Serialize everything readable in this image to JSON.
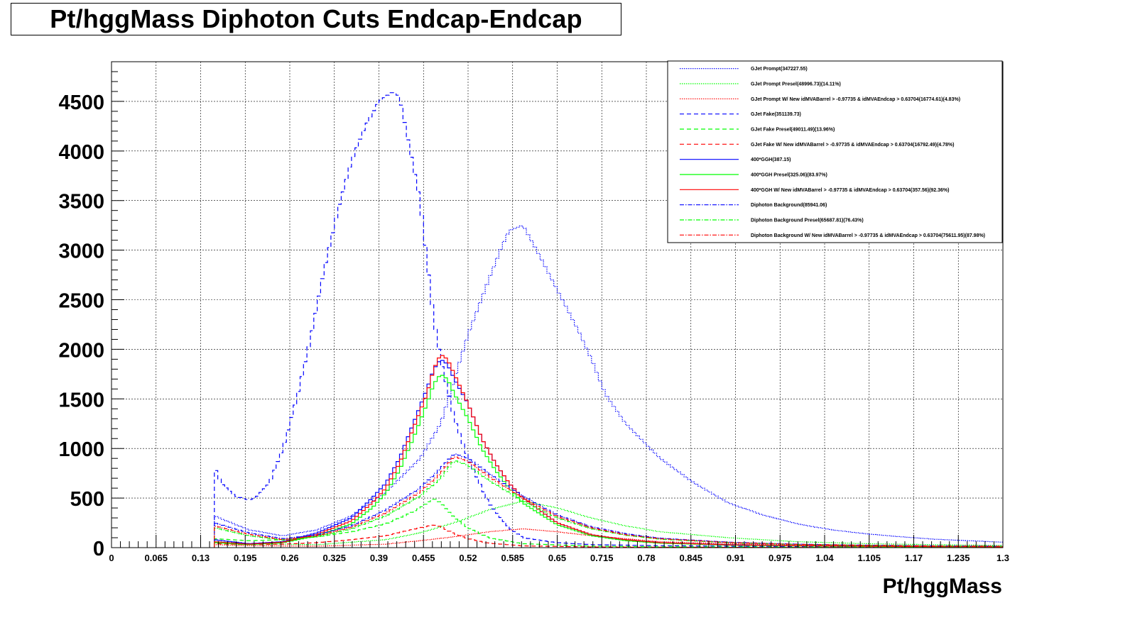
{
  "chart_data": {
    "type": "line",
    "title": "Pt/hggMass Diphoton Cuts Endcap-Endcap",
    "xlabel": "Pt/hggMass",
    "ylabel": "",
    "xlim": [
      0,
      1.3
    ],
    "ylim": [
      0,
      4900
    ],
    "grid": true,
    "legend_position": "top-right",
    "x_ticks": [
      "0",
      "0.065",
      "0.13",
      "0.195",
      "0.26",
      "0.325",
      "0.39",
      "0.455",
      "0.52",
      "0.585",
      "0.65",
      "0.715",
      "0.78",
      "0.845",
      "0.91",
      "0.975",
      "1.04",
      "1.105",
      "1.17",
      "1.235",
      "1.3"
    ],
    "y_ticks": [
      "0",
      "500",
      "1000",
      "1500",
      "2000",
      "2500",
      "3000",
      "3500",
      "4000",
      "4500"
    ],
    "series": [
      {
        "name": "GJet Prompt(347227.55)",
        "color": "#0000ff",
        "dash": "1.5,1.5",
        "points": [
          [
            0.15,
            320
          ],
          [
            0.2,
            180
          ],
          [
            0.25,
            120
          ],
          [
            0.3,
            180
          ],
          [
            0.35,
            320
          ],
          [
            0.4,
            560
          ],
          [
            0.45,
            900
          ],
          [
            0.48,
            1250
          ],
          [
            0.5,
            1700
          ],
          [
            0.52,
            2150
          ],
          [
            0.55,
            2700
          ],
          [
            0.57,
            3050
          ],
          [
            0.58,
            3200
          ],
          [
            0.6,
            3250
          ],
          [
            0.62,
            3000
          ],
          [
            0.65,
            2600
          ],
          [
            0.68,
            2200
          ],
          [
            0.7,
            1900
          ],
          [
            0.72,
            1550
          ],
          [
            0.75,
            1250
          ],
          [
            0.8,
            900
          ],
          [
            0.85,
            650
          ],
          [
            0.9,
            450
          ],
          [
            0.95,
            330
          ],
          [
            1.0,
            240
          ],
          [
            1.05,
            180
          ],
          [
            1.1,
            140
          ],
          [
            1.15,
            110
          ],
          [
            1.2,
            85
          ],
          [
            1.25,
            70
          ],
          [
            1.3,
            55
          ]
        ]
      },
      {
        "name": "GJet Prompt Presel(48996.73)(14.11%)",
        "color": "#00ff00",
        "dash": "1.5,1.5",
        "points": [
          [
            0.15,
            60
          ],
          [
            0.2,
            40
          ],
          [
            0.3,
            30
          ],
          [
            0.4,
            80
          ],
          [
            0.45,
            150
          ],
          [
            0.5,
            250
          ],
          [
            0.55,
            380
          ],
          [
            0.6,
            470
          ],
          [
            0.65,
            400
          ],
          [
            0.7,
            300
          ],
          [
            0.75,
            220
          ],
          [
            0.8,
            160
          ],
          [
            0.9,
            100
          ],
          [
            1.0,
            60
          ],
          [
            1.1,
            40
          ],
          [
            1.2,
            30
          ],
          [
            1.3,
            22
          ]
        ]
      },
      {
        "name": "GJet Prompt W/ New idMVABarrel > -0.97735 & idMVAEndcap > 0.63704(16774.61)(4.83%)",
        "color": "#ff0000",
        "dash": "1.5,1.5",
        "points": [
          [
            0.15,
            30
          ],
          [
            0.2,
            20
          ],
          [
            0.3,
            15
          ],
          [
            0.4,
            35
          ],
          [
            0.45,
            70
          ],
          [
            0.5,
            110
          ],
          [
            0.55,
            160
          ],
          [
            0.6,
            190
          ],
          [
            0.65,
            160
          ],
          [
            0.7,
            120
          ],
          [
            0.75,
            90
          ],
          [
            0.8,
            60
          ],
          [
            0.9,
            40
          ],
          [
            1.0,
            25
          ],
          [
            1.1,
            18
          ],
          [
            1.2,
            12
          ],
          [
            1.3,
            10
          ]
        ]
      },
      {
        "name": "GJet Fake(351139.73)",
        "color": "#0000ff",
        "dash": "6,4",
        "points": [
          [
            0.15,
            820
          ],
          [
            0.16,
            650
          ],
          [
            0.18,
            520
          ],
          [
            0.2,
            480
          ],
          [
            0.21,
            500
          ],
          [
            0.23,
            650
          ],
          [
            0.25,
            1000
          ],
          [
            0.27,
            1500
          ],
          [
            0.29,
            2100
          ],
          [
            0.31,
            2800
          ],
          [
            0.33,
            3400
          ],
          [
            0.35,
            3900
          ],
          [
            0.37,
            4250
          ],
          [
            0.39,
            4500
          ],
          [
            0.41,
            4600
          ],
          [
            0.42,
            4550
          ],
          [
            0.43,
            4200
          ],
          [
            0.45,
            3500
          ],
          [
            0.46,
            2900
          ],
          [
            0.47,
            2300
          ],
          [
            0.48,
            1900
          ],
          [
            0.5,
            1300
          ],
          [
            0.52,
            900
          ],
          [
            0.55,
            450
          ],
          [
            0.58,
            200
          ],
          [
            0.6,
            100
          ],
          [
            0.65,
            50
          ],
          [
            0.7,
            30
          ],
          [
            0.8,
            20
          ],
          [
            0.9,
            15
          ],
          [
            1.0,
            10
          ],
          [
            1.1,
            8
          ],
          [
            1.2,
            6
          ],
          [
            1.3,
            5
          ]
        ]
      },
      {
        "name": "GJet Fake Presel(49011.49)(13.96%)",
        "color": "#00ff00",
        "dash": "6,4",
        "points": [
          [
            0.15,
            90
          ],
          [
            0.2,
            70
          ],
          [
            0.25,
            80
          ],
          [
            0.3,
            110
          ],
          [
            0.35,
            160
          ],
          [
            0.4,
            240
          ],
          [
            0.43,
            330
          ],
          [
            0.45,
            400
          ],
          [
            0.47,
            500
          ],
          [
            0.48,
            450
          ],
          [
            0.5,
            300
          ],
          [
            0.52,
            200
          ],
          [
            0.55,
            100
          ],
          [
            0.6,
            40
          ],
          [
            0.7,
            15
          ],
          [
            0.8,
            8
          ],
          [
            1.0,
            5
          ],
          [
            1.3,
            3
          ]
        ]
      },
      {
        "name": "GJet Fake W/ New idMVABarrel > -0.97735 & idMVAEndcap > 0.63704(16792.49)(4.78%)",
        "color": "#ff0000",
        "dash": "6,4",
        "points": [
          [
            0.15,
            40
          ],
          [
            0.2,
            30
          ],
          [
            0.25,
            35
          ],
          [
            0.3,
            50
          ],
          [
            0.35,
            80
          ],
          [
            0.4,
            120
          ],
          [
            0.43,
            170
          ],
          [
            0.45,
            200
          ],
          [
            0.47,
            230
          ],
          [
            0.48,
            210
          ],
          [
            0.5,
            140
          ],
          [
            0.52,
            90
          ],
          [
            0.55,
            45
          ],
          [
            0.6,
            18
          ],
          [
            0.7,
            7
          ],
          [
            0.8,
            4
          ],
          [
            1.0,
            2
          ],
          [
            1.3,
            1
          ]
        ]
      },
      {
        "name": "400*GGH(387.15)",
        "color": "#0000ff",
        "dash": "",
        "points": [
          [
            0.15,
            80
          ],
          [
            0.2,
            40
          ],
          [
            0.25,
            60
          ],
          [
            0.3,
            150
          ],
          [
            0.35,
            300
          ],
          [
            0.38,
            500
          ],
          [
            0.4,
            650
          ],
          [
            0.42,
            900
          ],
          [
            0.44,
            1250
          ],
          [
            0.46,
            1600
          ],
          [
            0.47,
            1800
          ],
          [
            0.48,
            1900
          ],
          [
            0.49,
            1850
          ],
          [
            0.5,
            1700
          ],
          [
            0.52,
            1450
          ],
          [
            0.54,
            1100
          ],
          [
            0.56,
            850
          ],
          [
            0.58,
            650
          ],
          [
            0.6,
            500
          ],
          [
            0.65,
            250
          ],
          [
            0.7,
            130
          ],
          [
            0.75,
            80
          ],
          [
            0.8,
            50
          ],
          [
            0.9,
            30
          ],
          [
            1.0,
            20
          ],
          [
            1.1,
            15
          ],
          [
            1.2,
            10
          ],
          [
            1.3,
            8
          ]
        ]
      },
      {
        "name": "400*GGH Presel(325.06)(83.97%)",
        "color": "#00ff00",
        "dash": "",
        "points": [
          [
            0.15,
            50
          ],
          [
            0.2,
            30
          ],
          [
            0.25,
            50
          ],
          [
            0.3,
            120
          ],
          [
            0.35,
            240
          ],
          [
            0.38,
            400
          ],
          [
            0.4,
            550
          ],
          [
            0.42,
            780
          ],
          [
            0.44,
            1100
          ],
          [
            0.46,
            1450
          ],
          [
            0.47,
            1650
          ],
          [
            0.48,
            1750
          ],
          [
            0.49,
            1700
          ],
          [
            0.5,
            1550
          ],
          [
            0.52,
            1300
          ],
          [
            0.54,
            1000
          ],
          [
            0.56,
            780
          ],
          [
            0.58,
            600
          ],
          [
            0.6,
            450
          ],
          [
            0.65,
            230
          ],
          [
            0.7,
            120
          ],
          [
            0.75,
            70
          ],
          [
            0.8,
            45
          ],
          [
            0.9,
            25
          ],
          [
            1.0,
            18
          ],
          [
            1.1,
            12
          ],
          [
            1.2,
            9
          ],
          [
            1.3,
            7
          ]
        ]
      },
      {
        "name": "400*GGH W/ New idMVABarrel > -0.97735 & idMVAEndcap > 0.63704(357.56)(92.36%)",
        "color": "#ff0000",
        "dash": "",
        "points": [
          [
            0.15,
            60
          ],
          [
            0.2,
            35
          ],
          [
            0.25,
            55
          ],
          [
            0.3,
            135
          ],
          [
            0.35,
            270
          ],
          [
            0.38,
            450
          ],
          [
            0.4,
            600
          ],
          [
            0.42,
            850
          ],
          [
            0.44,
            1200
          ],
          [
            0.46,
            1550
          ],
          [
            0.47,
            1800
          ],
          [
            0.48,
            1950
          ],
          [
            0.49,
            1900
          ],
          [
            0.5,
            1750
          ],
          [
            0.52,
            1450
          ],
          [
            0.54,
            1100
          ],
          [
            0.56,
            850
          ],
          [
            0.58,
            650
          ],
          [
            0.6,
            500
          ],
          [
            0.65,
            250
          ],
          [
            0.7,
            130
          ],
          [
            0.75,
            80
          ],
          [
            0.8,
            50
          ],
          [
            0.9,
            28
          ],
          [
            1.0,
            20
          ],
          [
            1.1,
            14
          ],
          [
            1.2,
            10
          ],
          [
            1.3,
            8
          ]
        ]
      },
      {
        "name": "Diphoton Background(85941.06)",
        "color": "#0000ff",
        "dash": "6,2,1.5,2",
        "points": [
          [
            0.15,
            250
          ],
          [
            0.2,
            150
          ],
          [
            0.25,
            90
          ],
          [
            0.3,
            130
          ],
          [
            0.35,
            220
          ],
          [
            0.4,
            380
          ],
          [
            0.45,
            600
          ],
          [
            0.48,
            800
          ],
          [
            0.5,
            950
          ],
          [
            0.52,
            900
          ],
          [
            0.55,
            750
          ],
          [
            0.6,
            520
          ],
          [
            0.65,
            330
          ],
          [
            0.7,
            210
          ],
          [
            0.75,
            140
          ],
          [
            0.8,
            95
          ],
          [
            0.9,
            55
          ],
          [
            1.0,
            35
          ],
          [
            1.1,
            25
          ],
          [
            1.2,
            18
          ],
          [
            1.3,
            14
          ]
        ]
      },
      {
        "name": "Diphoton Background Presel(65687.81)(76.43%)",
        "color": "#00ff00",
        "dash": "6,2,1.5,2",
        "points": [
          [
            0.15,
            200
          ],
          [
            0.2,
            120
          ],
          [
            0.25,
            75
          ],
          [
            0.3,
            110
          ],
          [
            0.35,
            190
          ],
          [
            0.4,
            320
          ],
          [
            0.45,
            520
          ],
          [
            0.48,
            700
          ],
          [
            0.5,
            880
          ],
          [
            0.52,
            830
          ],
          [
            0.55,
            680
          ],
          [
            0.6,
            470
          ],
          [
            0.65,
            300
          ],
          [
            0.7,
            190
          ],
          [
            0.75,
            125
          ],
          [
            0.8,
            85
          ],
          [
            0.9,
            50
          ],
          [
            1.0,
            32
          ],
          [
            1.1,
            22
          ],
          [
            1.2,
            16
          ],
          [
            1.3,
            12
          ]
        ]
      },
      {
        "name": "Diphoton Background W/ New idMVABarrel > -0.97735 & idMVAEndcap > 0.63704(75611.95)(87.98%)",
        "color": "#ff0000",
        "dash": "6,2,1.5,2",
        "points": [
          [
            0.15,
            220
          ],
          [
            0.2,
            135
          ],
          [
            0.25,
            80
          ],
          [
            0.3,
            120
          ],
          [
            0.35,
            205
          ],
          [
            0.4,
            350
          ],
          [
            0.45,
            560
          ],
          [
            0.48,
            750
          ],
          [
            0.5,
            920
          ],
          [
            0.52,
            870
          ],
          [
            0.55,
            720
          ],
          [
            0.6,
            500
          ],
          [
            0.65,
            315
          ],
          [
            0.7,
            200
          ],
          [
            0.75,
            130
          ],
          [
            0.8,
            90
          ],
          [
            0.9,
            52
          ],
          [
            1.0,
            33
          ],
          [
            1.1,
            24
          ],
          [
            1.2,
            17
          ],
          [
            1.3,
            13
          ]
        ]
      }
    ]
  }
}
